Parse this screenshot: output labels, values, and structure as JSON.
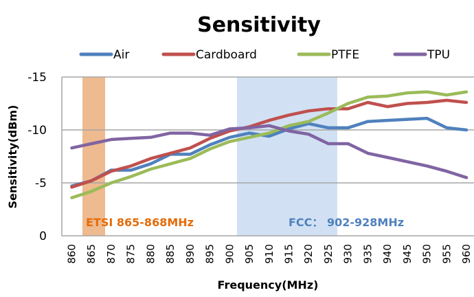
{
  "chart_data": {
    "type": "line",
    "title": "Sensitivity",
    "xlabel": "Frequency(MHz)",
    "ylabel": "Sensitivity(dBm)",
    "x": [
      860,
      865,
      870,
      875,
      880,
      885,
      890,
      895,
      900,
      905,
      910,
      915,
      920,
      925,
      930,
      935,
      940,
      945,
      950,
      955,
      960
    ],
    "x_tick_labels": [
      "860",
      "865",
      "870",
      "875",
      "880",
      "885",
      "890",
      "895",
      "900",
      "905",
      "910",
      "915",
      "920",
      "925",
      "930",
      "935",
      "940",
      "945",
      "950",
      "955",
      "960"
    ],
    "ylim": [
      0,
      -15
    ],
    "y_axis_reversed": true,
    "y_ticks": [
      0,
      -5,
      -10,
      -15
    ],
    "y_tick_labels": [
      "0",
      "-5",
      "-10",
      "-15"
    ],
    "grid": true,
    "legend_position": "top",
    "series": [
      {
        "name": "Air",
        "color": "#4f81bd",
        "values": [
          -4.7,
          -5.2,
          -6.2,
          -6.2,
          -6.8,
          -7.7,
          -7.7,
          -8.6,
          -9.3,
          -9.7,
          -9.4,
          -10.1,
          -10.6,
          -10.2,
          -10.2,
          -10.8,
          -10.9,
          -11.0,
          -11.1,
          -10.2,
          -10.0
        ]
      },
      {
        "name": "Cardboard",
        "color": "#c0504d",
        "values": [
          -4.6,
          -5.2,
          -6.1,
          -6.6,
          -7.3,
          -7.8,
          -8.3,
          -9.2,
          -9.9,
          -10.3,
          -10.9,
          -11.4,
          -11.8,
          -12.0,
          -12.0,
          -12.6,
          -12.2,
          -12.5,
          -12.6,
          -12.8,
          -12.6
        ]
      },
      {
        "name": "PTFE",
        "color": "#9bbb59",
        "values": [
          -3.6,
          -4.2,
          -5.0,
          -5.6,
          -6.3,
          -6.8,
          -7.3,
          -8.2,
          -8.9,
          -9.3,
          -9.7,
          -10.4,
          -10.8,
          -11.6,
          -12.5,
          -13.1,
          -13.2,
          -13.5,
          -13.6,
          -13.3,
          -13.6
        ]
      },
      {
        "name": "TPU",
        "color": "#8064a2",
        "values": [
          -8.3,
          -8.7,
          -9.1,
          -9.2,
          -9.3,
          -9.7,
          -9.7,
          -9.5,
          -10.1,
          -10.2,
          -10.4,
          -9.9,
          -9.6,
          -8.7,
          -8.7,
          -7.8,
          -7.4,
          -7.0,
          -6.6,
          -6.1,
          -5.5
        ]
      }
    ],
    "bands": [
      {
        "name": "etsi",
        "label": "ETSI 865-868MHz",
        "from_mhz": 865,
        "to_mhz": 868,
        "color": "#e8a36a",
        "label_color": "#e46c0a"
      },
      {
        "name": "fcc",
        "label": "FCC： 902-928MHz",
        "from_mhz": 902,
        "to_mhz": 928,
        "color": "#c6d9f0",
        "label_color": "#4f81bd"
      }
    ]
  }
}
